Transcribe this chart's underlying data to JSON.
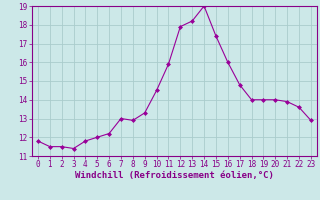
{
  "x": [
    0,
    1,
    2,
    3,
    4,
    5,
    6,
    7,
    8,
    9,
    10,
    11,
    12,
    13,
    14,
    15,
    16,
    17,
    18,
    19,
    20,
    21,
    22,
    23
  ],
  "y": [
    11.8,
    11.5,
    11.5,
    11.4,
    11.8,
    12.0,
    12.2,
    13.0,
    12.9,
    13.3,
    14.5,
    15.9,
    17.9,
    18.2,
    19.0,
    17.4,
    16.0,
    14.8,
    14.0,
    14.0,
    14.0,
    13.9,
    13.6,
    12.9
  ],
  "xlim": [
    -0.5,
    23.5
  ],
  "ylim": [
    11,
    19
  ],
  "xticks": [
    0,
    1,
    2,
    3,
    4,
    5,
    6,
    7,
    8,
    9,
    10,
    11,
    12,
    13,
    14,
    15,
    16,
    17,
    18,
    19,
    20,
    21,
    22,
    23
  ],
  "yticks": [
    11,
    12,
    13,
    14,
    15,
    16,
    17,
    18,
    19
  ],
  "xlabel": "Windchill (Refroidissement éolien,°C)",
  "line_color": "#990099",
  "marker": "D",
  "marker_size": 2.0,
  "line_width": 0.8,
  "bg_color": "#cce8e8",
  "grid_color": "#aacccc",
  "tick_color": "#880088",
  "label_color": "#880088",
  "xlabel_fontsize": 6.5,
  "tick_fontsize": 5.5
}
